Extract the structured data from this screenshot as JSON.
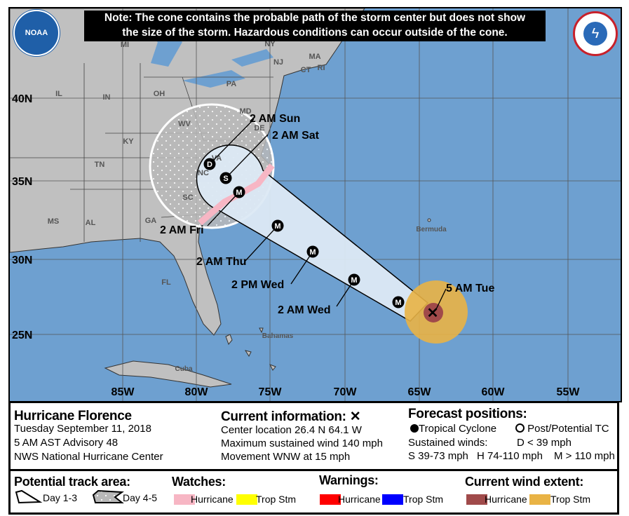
{
  "note": {
    "line1": "Note: The cone contains the probable path of the storm center but does not show",
    "line2": "the size of the storm. Hazardous conditions can occur outside of the cone."
  },
  "logos": {
    "left": "NOAA",
    "right": "NATIONAL WEATHER SERVICE"
  },
  "map": {
    "lat_labels": [
      "40N",
      "35N",
      "30N",
      "25N"
    ],
    "lon_labels": [
      "85W",
      "80W",
      "75W",
      "70W",
      "65W",
      "60W",
      "55W"
    ],
    "region_labels": [
      "MI",
      "NY",
      "NJ",
      "MA",
      "CT",
      "RI",
      "PA",
      "IL",
      "IN",
      "OH",
      "WV",
      "KY",
      "VA",
      "TN",
      "NC",
      "SC",
      "GA",
      "AL",
      "MS",
      "FL",
      "MD",
      "DE",
      "Bermuda",
      "Bahamas",
      "Cuba"
    ],
    "forecast_labels": [
      "5 AM Tue",
      "2 AM Wed",
      "2 PM Wed",
      "2 AM Thu",
      "2 AM Fri",
      "2 AM Sat",
      "2 AM Sun"
    ],
    "point_markers": [
      "M",
      "M",
      "M",
      "M",
      "M",
      "S",
      "D"
    ],
    "colors": {
      "ocean": "#6ea0d0",
      "land": "#c0c0c0",
      "cone": "#dce9f4",
      "watch_hurricane": "#f7b6c4",
      "wind_hurricane": "#a04a4a",
      "wind_tropstm": "#e9b345"
    }
  },
  "storm": {
    "name": "Hurricane Florence",
    "date": "Tuesday September 11, 2018",
    "advisory": "5 AM AST Advisory 48",
    "center": "NWS National Hurricane Center"
  },
  "current": {
    "title": "Current information:",
    "marker": "✕",
    "location": "Center location 26.4 N 64.1 W",
    "wind": "Maximum sustained wind 140 mph",
    "movement": "Movement WNW at 15 mph"
  },
  "forecast": {
    "title": "Forecast positions:",
    "tc": "Tropical Cyclone",
    "ptc": "Post/Potential TC",
    "sustained": "Sustained winds:",
    "d": "D < 39 mph",
    "s": "S 39-73 mph",
    "h": "H 74-110 mph",
    "m": "M > 110 mph"
  },
  "legend": {
    "track_title": "Potential track area:",
    "day13": "Day 1-3",
    "day45": "Day 4-5",
    "watches_title": "Watches:",
    "watch_h": "Hurricane",
    "watch_t": "Trop Stm",
    "warnings_title": "Warnings:",
    "warn_h": "Hurricane",
    "warn_t": "Trop Stm",
    "wind_title": "Current wind extent:",
    "wind_h": "Hurricane",
    "wind_t": "Trop Stm"
  }
}
